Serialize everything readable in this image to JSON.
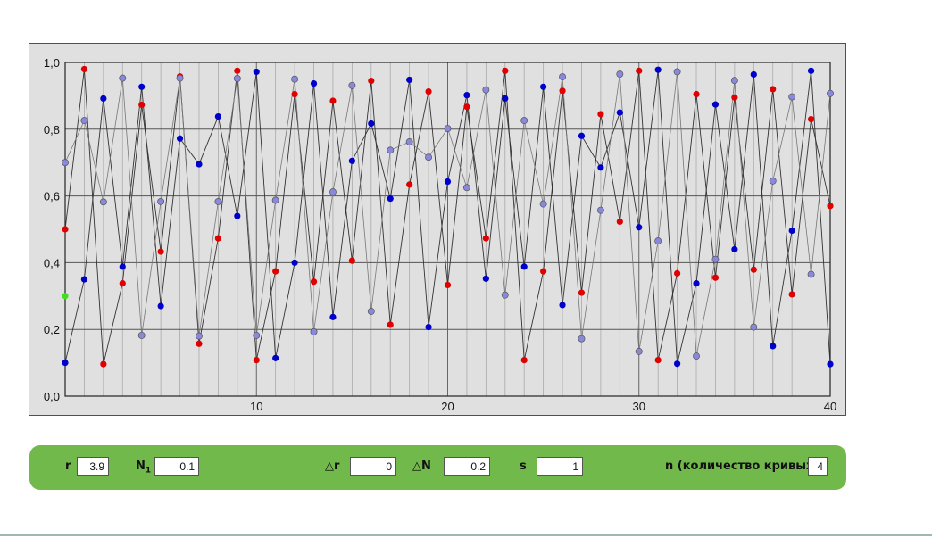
{
  "chart_data": {
    "type": "scatter",
    "title": "",
    "xlabel": "",
    "ylabel": "",
    "xlim": [
      0,
      40
    ],
    "ylim": [
      0,
      1
    ],
    "x_ticks": [
      "10",
      "20",
      "30",
      "40"
    ],
    "y_ticks": [
      "0,0",
      "0,2",
      "0,4",
      "0,6",
      "0,8",
      "1,0"
    ],
    "grid": true,
    "colors": {
      "red": "#e00000",
      "blue": "#0000cc",
      "light": "#8888dd",
      "green": "#44dd22",
      "line_dark": "#333333",
      "line_light": "#777777"
    },
    "series": [
      {
        "color": "red",
        "values": [
          0.5,
          0.98,
          0.096,
          0.338,
          0.873,
          0.433,
          0.958,
          0.157,
          0.473,
          0.975,
          0.108,
          0.374,
          0.905,
          0.343,
          0.885,
          0.406,
          0.945,
          0.214,
          0.634,
          0.913,
          0.333,
          0.867,
          0.473,
          0.975,
          0.108,
          0.374,
          0.915,
          0.31,
          0.845,
          0.523,
          0.975,
          0.108,
          0.368,
          0.905,
          0.355,
          0.895,
          0.379,
          0.92,
          0.305,
          0.83,
          0.57
        ]
      },
      {
        "color": "blue",
        "values": [
          0.1,
          0.35,
          0.892,
          0.388,
          0.927,
          0.27,
          0.772,
          0.695,
          0.838,
          0.54,
          0.972,
          0.114,
          0.4,
          0.937,
          0.237,
          0.705,
          0.817,
          0.592,
          0.948,
          0.207,
          0.643,
          0.902,
          0.352,
          0.892,
          0.388,
          0.927,
          0.273,
          0.78,
          0.685,
          0.85,
          0.506,
          0.978,
          0.097,
          0.338,
          0.874,
          0.44,
          0.964,
          0.15,
          0.496,
          0.975,
          0.096
        ]
      },
      {
        "color": "light",
        "values": [
          0.7,
          0.826,
          0.582,
          0.953,
          0.182,
          0.583,
          0.953,
          0.18,
          0.583,
          0.952,
          0.182,
          0.587,
          0.95,
          0.193,
          0.612,
          0.931,
          0.254,
          0.737,
          0.762,
          0.716,
          0.802,
          0.625,
          0.918,
          0.303,
          0.826,
          0.576,
          0.957,
          0.172,
          0.557,
          0.965,
          0.134,
          0.465,
          0.972,
          0.12,
          0.41,
          0.946,
          0.207,
          0.645,
          0.897,
          0.365,
          0.907
        ]
      },
      {
        "color": "green",
        "values": [
          0.3
        ]
      }
    ]
  },
  "controls": {
    "r_label": "r",
    "r_value": "3.9",
    "n1_label": "N",
    "n1_sub": "1",
    "n1_value": "0.1",
    "dr_label": "△r",
    "dr_value": "0",
    "dn_label": "△N",
    "dn_value": "0.2",
    "s_label": "s",
    "s_value": "1",
    "n_label": "n (количество кривых):",
    "n_value": "4"
  }
}
